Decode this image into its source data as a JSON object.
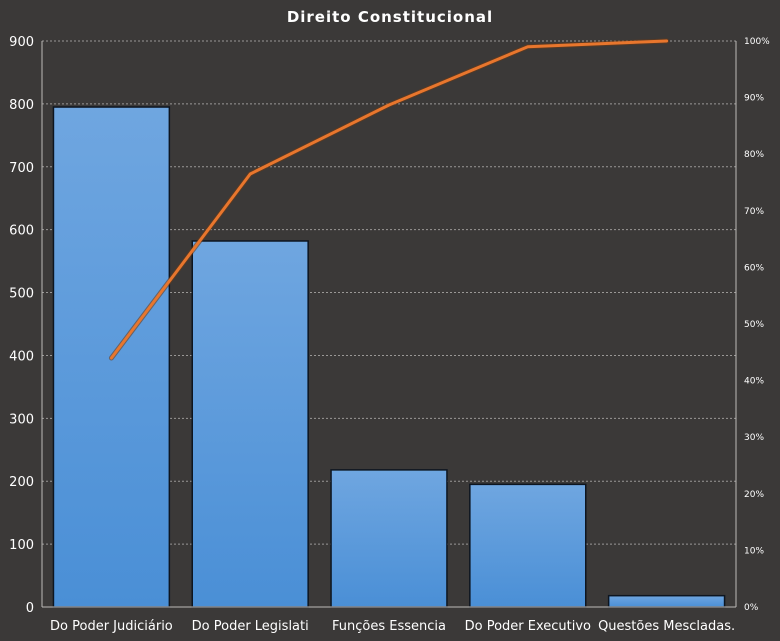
{
  "chart_data": {
    "type": "bar",
    "title": "Direito  Constitucional",
    "categories": [
      "Do Poder Judiciário",
      "Do Poder Legislati",
      "Funções Essencia",
      "Do Poder Executivo",
      "Questões Mescladas."
    ],
    "series": [
      {
        "type": "bar",
        "values": [
          795,
          582,
          218,
          195,
          18
        ],
        "color": "#4a8fd6"
      },
      {
        "type": "line",
        "axis": "right",
        "values": [
          0.44,
          0.765,
          0.887,
          0.99,
          1.0
        ],
        "color": "#e8762d"
      }
    ],
    "ylim": [
      0,
      900
    ],
    "yticks": [
      "0",
      "100",
      "200",
      "300",
      "400",
      "500",
      "600",
      "700",
      "800",
      "900"
    ],
    "y2lim": [
      0,
      1
    ],
    "y2ticks": [
      "0%",
      "10%",
      "20%",
      "30%",
      "40%",
      "50%",
      "60%",
      "70%",
      "80%",
      "90%",
      "100%"
    ],
    "grid": true,
    "legend": "none"
  }
}
